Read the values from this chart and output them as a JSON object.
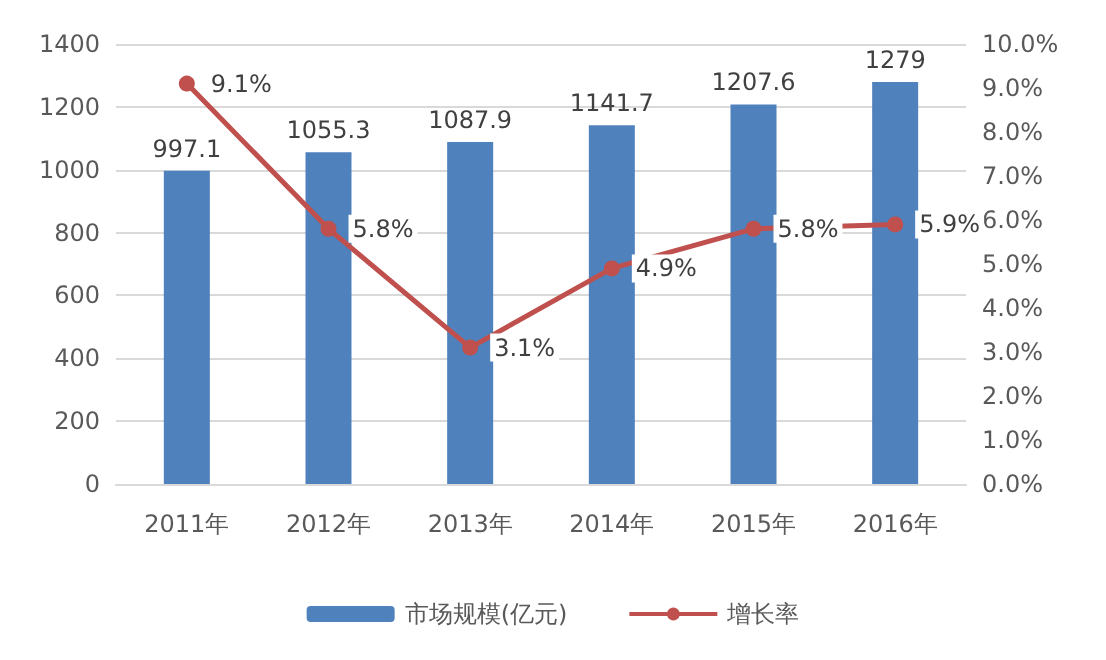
{
  "chart_data": {
    "type": "bar",
    "categories": [
      "2011年",
      "2012年",
      "2013年",
      "2014年",
      "2015年",
      "2016年"
    ],
    "series": [
      {
        "name": "市场规模(亿元)",
        "color": "#4f81bd",
        "values": [
          997.1,
          1055.3,
          1087.9,
          1141.7,
          1207.6,
          1279
        ],
        "value_labels": [
          "997.1",
          "1055.3",
          "1087.9",
          "1141.7",
          "1207.6",
          "1279"
        ]
      },
      {
        "name": "增长率",
        "type": "line",
        "axis": "y2",
        "color": "#c0504d",
        "values": [
          9.1,
          5.8,
          3.1,
          4.9,
          5.8,
          5.9
        ],
        "value_labels": [
          "9.1%",
          "5.8%",
          "3.1%",
          "4.9%",
          "5.8%",
          "5.9%"
        ]
      }
    ],
    "ylim": [
      0,
      1400
    ],
    "yticks": [
      0,
      200,
      400,
      600,
      800,
      1000,
      1200,
      1400
    ],
    "y2lim": [
      0,
      10
    ],
    "y2ticks": [
      {
        "value": 0,
        "label": "0.0%"
      },
      {
        "value": 1,
        "label": "1.0%"
      },
      {
        "value": 2,
        "label": "2.0%"
      },
      {
        "value": 3,
        "label": "3.0%"
      },
      {
        "value": 4,
        "label": "4.0%"
      },
      {
        "value": 5,
        "label": "5.0%"
      },
      {
        "value": 6,
        "label": "6.0%"
      },
      {
        "value": 7,
        "label": "7.0%"
      },
      {
        "value": 8,
        "label": "8.0%"
      },
      {
        "value": 9,
        "label": "9.0%"
      },
      {
        "value": 10,
        "label": "10.0%"
      }
    ],
    "grid": "y",
    "legend": "bottom",
    "marker": "circle"
  }
}
